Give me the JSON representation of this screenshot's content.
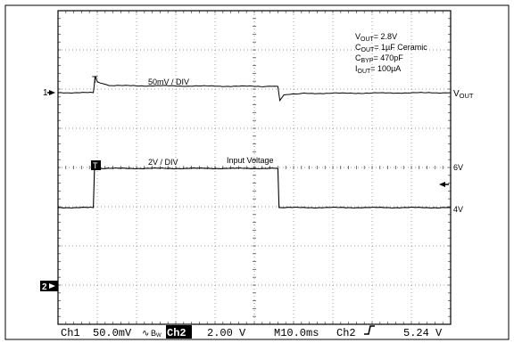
{
  "chart_data": {
    "type": "line",
    "x_axis": {
      "divisions": 10,
      "time_per_div": "10.0ms"
    },
    "y_axis": {
      "divisions": 8
    },
    "grid": true,
    "annotations": {
      "params": [
        {
          "base": "V",
          "sub": "OUT",
          "text": "= 2.8V"
        },
        {
          "base": "C",
          "sub": "OUT",
          "text": "= 1µF Ceramic"
        },
        {
          "base": "C",
          "sub": "BYP",
          "text": "= 470pF"
        },
        {
          "base": "I",
          "sub": "OUT",
          "text": "= 100µA"
        }
      ],
      "ch1_scale": "50mV / DIV",
      "ch2_scale": "2V / DIV",
      "input_label": "Input Voltage",
      "right_labels": {
        "vout_base": "V",
        "vout_sub": "OUT",
        "high": "6V",
        "low": "4V"
      },
      "channel_markers": {
        "ch1": "1",
        "ch2": "2"
      },
      "trigger_marker": "T"
    },
    "series": [
      {
        "channel": "Ch1",
        "x": [
          0,
          0.9,
          0.95,
          1.0,
          1.3,
          5.3,
          5.6,
          5.65,
          5.75,
          6.2,
          10
        ],
        "y": [
          0,
          0,
          0.42,
          0.28,
          0.18,
          0.16,
          0.16,
          -0.2,
          -0.06,
          -0.02,
          0
        ],
        "unit": "div"
      },
      {
        "channel": "Ch2",
        "x": [
          0,
          0.9,
          0.93,
          5.6,
          5.63,
          10
        ],
        "y": [
          4,
          4,
          6,
          6,
          4,
          4
        ],
        "unit": "V"
      }
    ]
  },
  "status_bar": {
    "ch1_label": "Ch1",
    "ch1_scale": "50.0mV",
    "ch1_coupling": "∿",
    "ch1_bw": "B",
    "ch1_bw_sub": "W",
    "ch2_label": "Ch2",
    "ch2_scale": "2.00 V",
    "timebase": "M10.0ms",
    "trig_source": "Ch2",
    "trig_level": "5.24 V"
  }
}
